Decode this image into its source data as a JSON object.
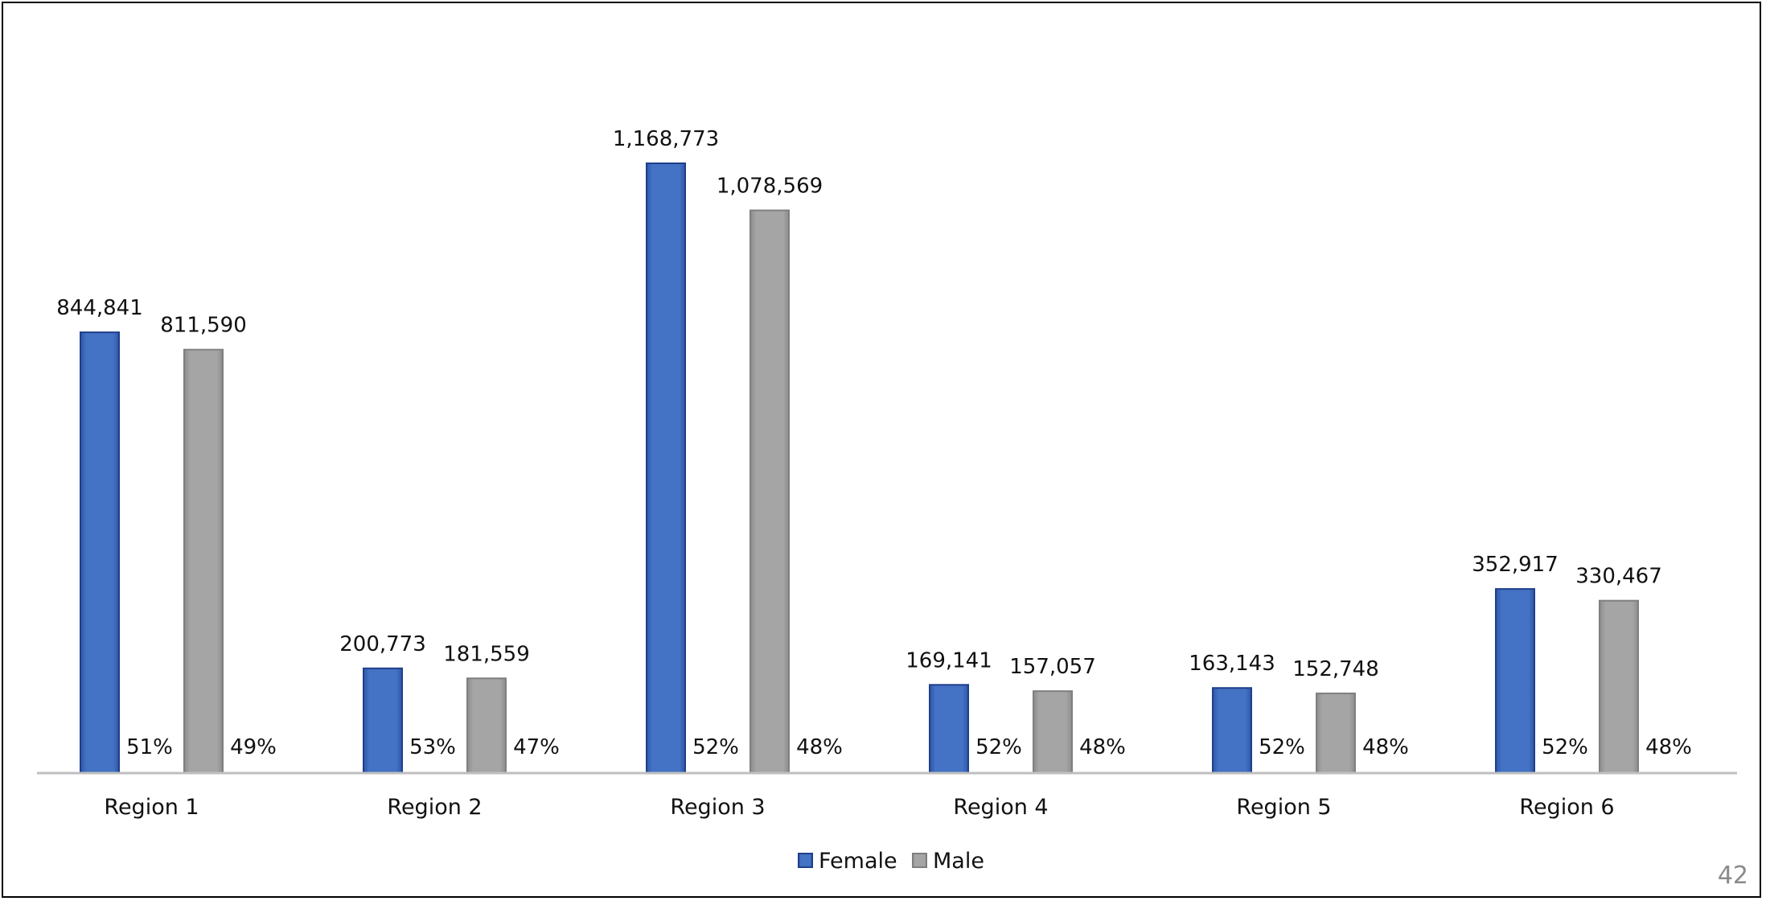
{
  "chart_data": {
    "type": "bar",
    "categories": [
      "Region 1",
      "Region 2",
      "Region 3",
      "Region 4",
      "Region 5",
      "Region 6"
    ],
    "series": [
      {
        "name": "Female",
        "values": [
          844841,
          200773,
          1168773,
          169141,
          163143,
          352917
        ],
        "value_labels": [
          "844,841",
          "200,773",
          "1,168,773",
          "169,141",
          "163,143",
          "352,917"
        ],
        "percent_labels": [
          "51%",
          "53%",
          "52%",
          "52%",
          "52%",
          "52%"
        ],
        "color": "#4472C4"
      },
      {
        "name": "Male",
        "values": [
          811590,
          181559,
          1078569,
          157057,
          152748,
          330467
        ],
        "value_labels": [
          "811,590",
          "181,559",
          "1,078,569",
          "157,057",
          "152,748",
          "330,467"
        ],
        "percent_labels": [
          "49%",
          "47%",
          "48%",
          "48%",
          "48%",
          "48%"
        ],
        "color": "#A5A5A5"
      }
    ],
    "ylim": [
      0,
      1168773
    ],
    "grid": false,
    "legend_position": "bottom"
  },
  "page_number": "42"
}
